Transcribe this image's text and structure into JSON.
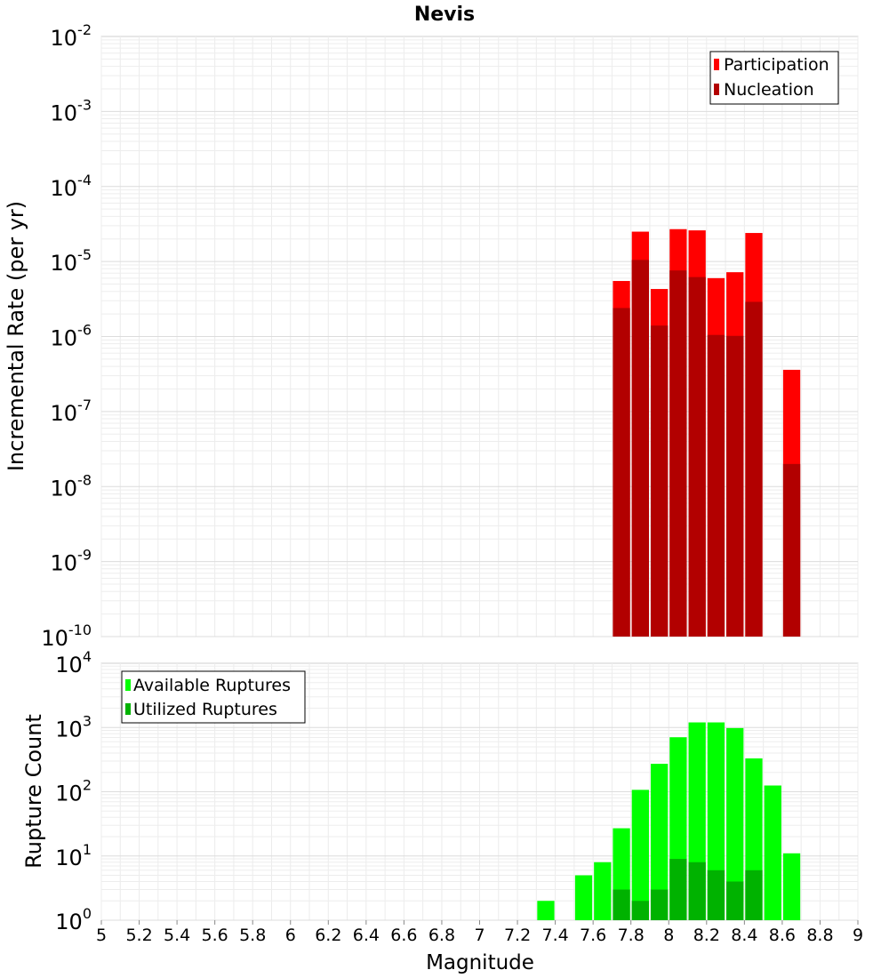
{
  "chart_data": [
    {
      "type": "bar",
      "name": "rate-panel",
      "title": "Nevis",
      "xlabel": "Magnitude",
      "ylabel": "Incremental Rate (per yr)",
      "yscale": "log",
      "ylim_exponents": [
        -10,
        -2
      ],
      "xlim": [
        5,
        9
      ],
      "grid": true,
      "legend_position": "top-right",
      "bin_width": 0.1,
      "series": [
        {
          "name": "Participation",
          "color": "#ff0000",
          "x": [
            7.75,
            7.85,
            7.95,
            8.05,
            8.15,
            8.25,
            8.35,
            8.45,
            8.65
          ],
          "values": [
            5.5e-06,
            2.5e-05,
            4.3e-06,
            2.7e-05,
            2.6e-05,
            6e-06,
            7.2e-06,
            2.4e-05,
            3.6e-07
          ]
        },
        {
          "name": "Nucleation",
          "color": "#b20000",
          "x": [
            7.75,
            7.85,
            7.95,
            8.05,
            8.15,
            8.25,
            8.35,
            8.45,
            8.65
          ],
          "values": [
            2.4e-06,
            1.05e-05,
            1.4e-06,
            7.6e-06,
            6.2e-06,
            1.05e-06,
            1.02e-06,
            2.9e-06,
            2e-08
          ]
        }
      ]
    },
    {
      "type": "bar",
      "name": "count-panel",
      "xlabel": "Magnitude",
      "ylabel": "Rupture Count",
      "yscale": "log",
      "ylim_exponents": [
        0,
        4
      ],
      "xlim": [
        5,
        9
      ],
      "grid": true,
      "legend_position": "top-left",
      "bin_width": 0.1,
      "series": [
        {
          "name": "Available Ruptures",
          "color": "#00ff00",
          "x": [
            7.35,
            7.55,
            7.65,
            7.75,
            7.85,
            7.95,
            8.05,
            8.15,
            8.25,
            8.35,
            8.45,
            8.55,
            8.65
          ],
          "values": [
            2,
            5,
            8,
            27,
            107,
            272,
            705,
            1200,
            1200,
            980,
            330,
            125,
            11
          ]
        },
        {
          "name": "Utilized Ruptures",
          "color": "#00b200",
          "x": [
            7.75,
            7.85,
            7.95,
            8.05,
            8.15,
            8.25,
            8.35,
            8.45,
            8.65
          ],
          "values": [
            3,
            2,
            3,
            9,
            8,
            6,
            4,
            6,
            1
          ]
        }
      ]
    }
  ],
  "x_ticks": [
    "5",
    "5.2",
    "5.4",
    "5.6",
    "5.8",
    "6",
    "6.2",
    "6.4",
    "6.6",
    "6.8",
    "7",
    "7.2",
    "7.4",
    "7.6",
    "7.8",
    "8",
    "8.2",
    "8.4",
    "8.6",
    "8.8",
    "9"
  ],
  "log_tick_base": "10"
}
